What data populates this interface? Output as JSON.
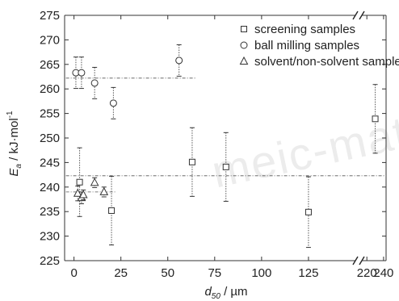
{
  "watermark": "meic-mater",
  "chart_data": {
    "type": "scatter",
    "title": "",
    "ylabel": {
      "base": "E",
      "sub": "a",
      "rest": " / kJ·mol",
      "sup": "-1"
    },
    "xlabel": {
      "base": "d",
      "sub": "50",
      "rest": " / µm"
    },
    "ylim": [
      225,
      275
    ],
    "y_ticks": [
      225,
      230,
      235,
      240,
      245,
      250,
      255,
      260,
      265,
      270,
      275
    ],
    "x_segments": [
      {
        "range": [
          -5,
          150
        ],
        "ticks": [
          0,
          25,
          50,
          75,
          100,
          125
        ]
      },
      {
        "range": [
          214,
          243
        ],
        "ticks": [
          220,
          240
        ]
      }
    ],
    "grid": false,
    "legend_position": "top-right",
    "series": [
      {
        "name": "screening samples",
        "marker": "square",
        "points": [
          {
            "x": 3,
            "y": 241.0,
            "err": 7.0
          },
          {
            "x": 20,
            "y": 235.2,
            "err": 7.0
          },
          {
            "x": 63,
            "y": 245.1,
            "err": 7.0
          },
          {
            "x": 81,
            "y": 244.1,
            "err": 7.0
          },
          {
            "x": 125,
            "y": 234.9,
            "err": 7.2
          },
          {
            "x": 230,
            "y": 253.9,
            "err": 7.0
          }
        ]
      },
      {
        "name": "ball milling samples",
        "marker": "circle",
        "points": [
          {
            "x": 1,
            "y": 263.3,
            "err": 3.2
          },
          {
            "x": 4,
            "y": 263.3,
            "err": 3.2
          },
          {
            "x": 11,
            "y": 261.2,
            "err": 3.2
          },
          {
            "x": 21,
            "y": 257.1,
            "err": 3.2
          },
          {
            "x": 56,
            "y": 265.8,
            "err": 3.2
          }
        ]
      },
      {
        "name": "solvent/non-solvent samples",
        "marker": "triangle",
        "points": [
          {
            "x": 2,
            "y": 238.7,
            "err": 1.5
          },
          {
            "x": 4,
            "y": 237.8,
            "err": 1.2
          },
          {
            "x": 5,
            "y": 238.4,
            "err": 1.0
          },
          {
            "x": 11,
            "y": 240.9,
            "err": 1.0
          },
          {
            "x": 16,
            "y": 239.0,
            "err": 1.0
          }
        ]
      }
    ],
    "mean_lines": [
      {
        "y": 262.2,
        "x_from": 0,
        "x_to": 65
      },
      {
        "y": 242.3,
        "x_from": 0,
        "x_to": 243
      },
      {
        "y": 239.0,
        "x_from": 0,
        "x_to": 22
      }
    ]
  }
}
